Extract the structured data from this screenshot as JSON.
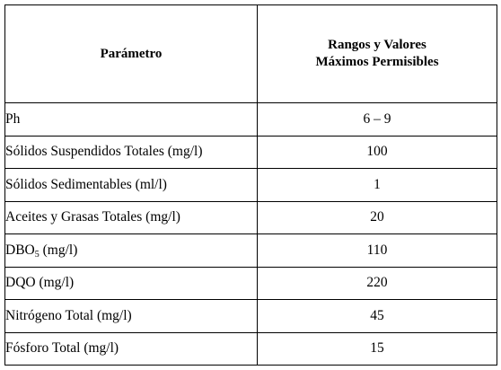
{
  "table": {
    "headers": {
      "parameter": "Parámetro",
      "range_line1": "Rangos y Valores",
      "range_line2": "Máximos Permisibles"
    },
    "rows": [
      {
        "name": "Ph",
        "value": "6 – 9"
      },
      {
        "name": "Sólidos Suspendidos Totales (mg/l)",
        "value": "100"
      },
      {
        "name": "Sólidos Sedimentables (ml/l)",
        "value": "1"
      },
      {
        "name": "Aceites y Grasas Totales (mg/l)",
        "value": "20"
      },
      {
        "name_pre": "DBO",
        "name_sub": "5",
        "name_post": " (mg/l)",
        "value": "110"
      },
      {
        "name": "DQO (mg/l)",
        "value": "220"
      },
      {
        "name": "Nitrógeno Total (mg/l)",
        "value": "45"
      },
      {
        "name": "Fósforo Total (mg/l)",
        "value": "15"
      }
    ]
  }
}
